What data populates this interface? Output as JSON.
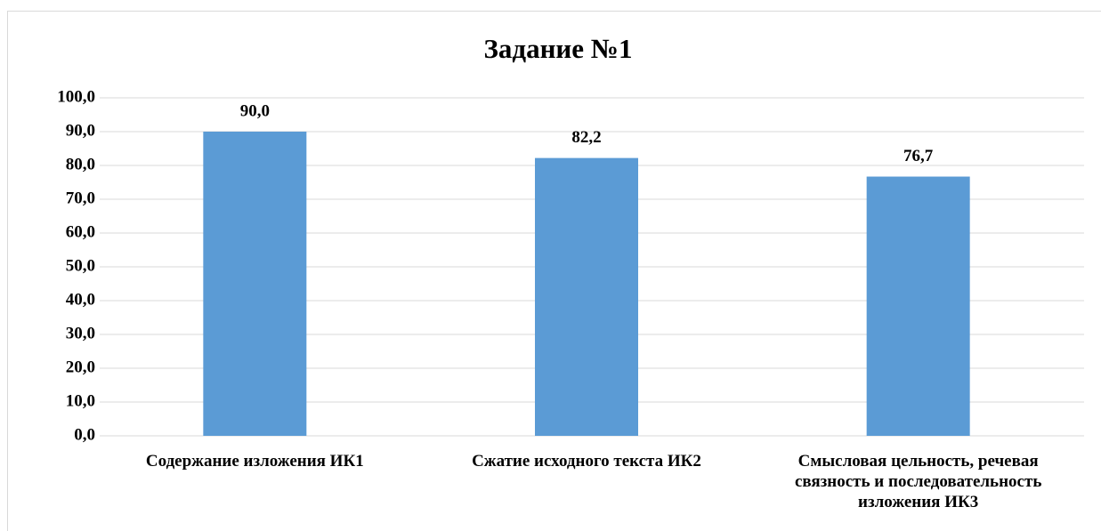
{
  "chart_data": {
    "type": "bar",
    "title": "Задание №1",
    "categories": [
      "Содержание изложения ИК1",
      "Сжатие исходного текста ИК2",
      "Смысловая цельность, речевая связность и последовательность изложения ИК3"
    ],
    "values": [
      90.0,
      82.2,
      76.7
    ],
    "value_labels": [
      "90,0",
      "82,2",
      "76,7"
    ],
    "color": "#5b9bd5",
    "ylim": [
      0,
      100
    ],
    "yticks": [
      {
        "value": 0,
        "label": "0,0"
      },
      {
        "value": 10,
        "label": "10,0"
      },
      {
        "value": 20,
        "label": "20,0"
      },
      {
        "value": 30,
        "label": "30,0"
      },
      {
        "value": 40,
        "label": "40,0"
      },
      {
        "value": 50,
        "label": "50,0"
      },
      {
        "value": 60,
        "label": "60,0"
      },
      {
        "value": 70,
        "label": "70,0"
      },
      {
        "value": 80,
        "label": "80,0"
      },
      {
        "value": 90,
        "label": "90,0"
      },
      {
        "value": 100,
        "label": "100,0"
      }
    ],
    "grid": true
  }
}
